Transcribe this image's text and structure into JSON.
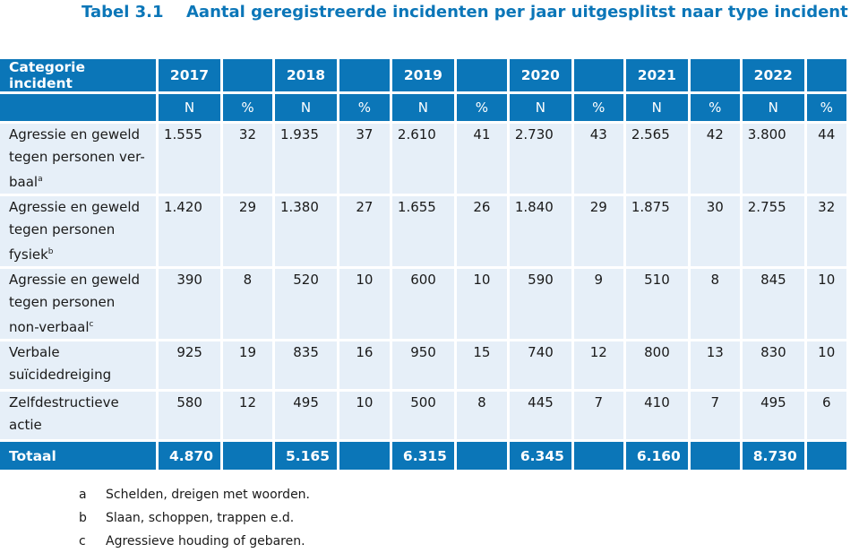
{
  "table_number": "Tabel 3.1",
  "table_title": "Aantal geregistreerde incidenten per jaar uitgesplitst naar type incident",
  "header": {
    "category_label": "Categorie incident",
    "years": [
      "2017",
      "2018",
      "2019",
      "2020",
      "2021",
      "2022"
    ],
    "n_label": "N",
    "pct_label": "%"
  },
  "rows": [
    {
      "label_lines": [
        "Agressie en geweld",
        "tegen personen ver-",
        "baal"
      ],
      "sup": "a",
      "values": [
        [
          "1.555",
          "32"
        ],
        [
          "1.935",
          "37"
        ],
        [
          "2.610",
          "41"
        ],
        [
          "2.730",
          "43"
        ],
        [
          "2.565",
          "42"
        ],
        [
          "3.800",
          "44"
        ]
      ]
    },
    {
      "label_lines": [
        "Agressie en geweld",
        "tegen personen",
        "fysiek"
      ],
      "sup": "b",
      "values": [
        [
          "1.420",
          "29"
        ],
        [
          "1.380",
          "27"
        ],
        [
          "1.655",
          "26"
        ],
        [
          "1.840",
          "29"
        ],
        [
          "1.875",
          "30"
        ],
        [
          "2.755",
          "32"
        ]
      ]
    },
    {
      "label_lines": [
        "Agressie en geweld",
        "tegen personen",
        "non-verbaal"
      ],
      "sup": "c",
      "values": [
        [
          "390",
          "8"
        ],
        [
          "520",
          "10"
        ],
        [
          "600",
          "10"
        ],
        [
          "590",
          "9"
        ],
        [
          "510",
          "8"
        ],
        [
          "845",
          "10"
        ]
      ]
    },
    {
      "label_lines": [
        "Verbale",
        "suïcidedreiging"
      ],
      "sup": "",
      "values": [
        [
          "925",
          "19"
        ],
        [
          "835",
          "16"
        ],
        [
          "950",
          "15"
        ],
        [
          "740",
          "12"
        ],
        [
          "800",
          "13"
        ],
        [
          "830",
          "10"
        ]
      ]
    },
    {
      "label_lines": [
        "Zelfdestructieve",
        "actie"
      ],
      "sup": "",
      "values": [
        [
          "580",
          "12"
        ],
        [
          "495",
          "10"
        ],
        [
          "500",
          "8"
        ],
        [
          "445",
          "7"
        ],
        [
          "410",
          "7"
        ],
        [
          "495",
          "6"
        ]
      ]
    }
  ],
  "total": {
    "label": "Totaal",
    "values": [
      "4.870",
      "5.165",
      "6.315",
      "6.345",
      "6.160",
      "8.730"
    ]
  },
  "footnotes": [
    {
      "key": "a",
      "text": "Schelden, dreigen met woorden."
    },
    {
      "key": "b",
      "text": "Slaan, schoppen, trappen e.d."
    },
    {
      "key": "c",
      "text": "Agressieve houding of gebaren."
    }
  ]
}
